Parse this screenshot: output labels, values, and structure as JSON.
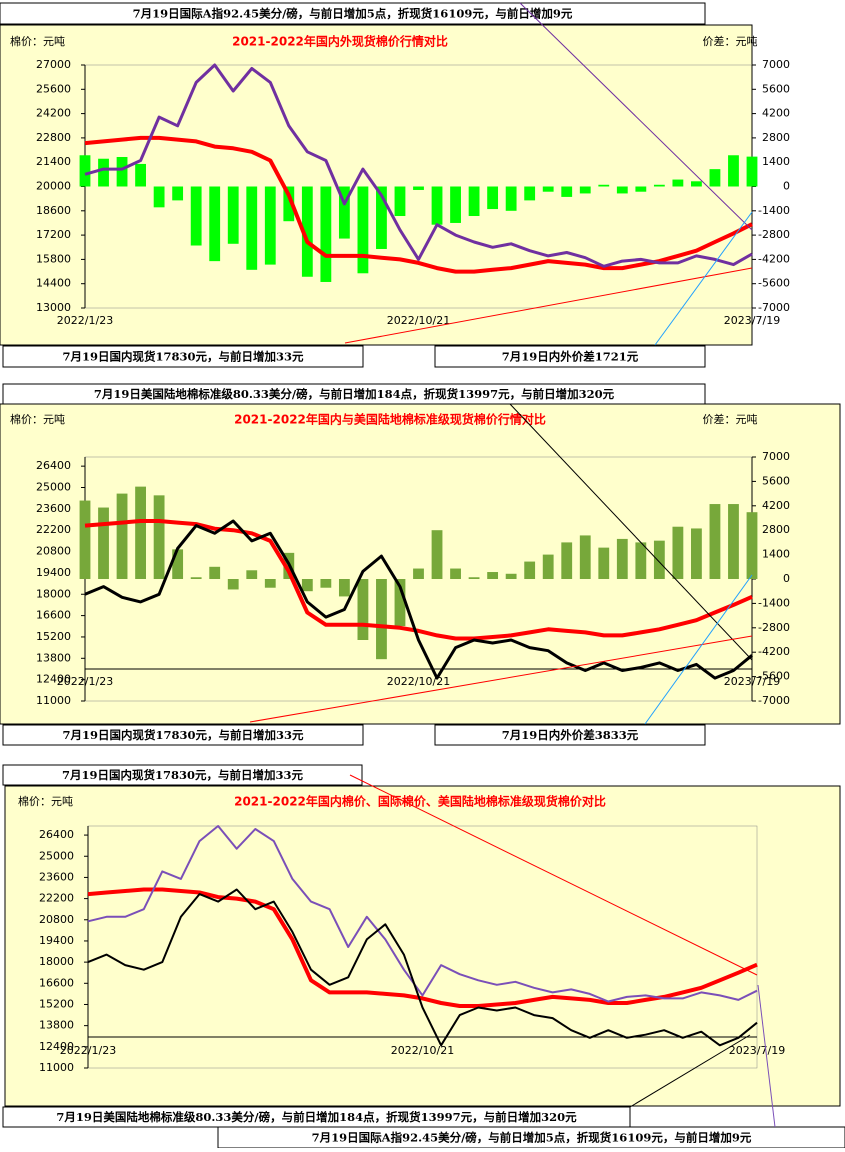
{
  "chart_data": [
    {
      "type": "bar-line",
      "title": "2021-2022年国内外现货棉价行情对比",
      "y_label": "棉价：元吨",
      "y2_label": "价差：元吨",
      "categories": [
        "2022/1/23",
        null,
        null,
        null,
        null,
        null,
        null,
        null,
        null,
        null,
        null,
        null,
        null,
        null,
        null,
        null,
        null,
        null,
        "2022/10/21",
        null,
        null,
        null,
        null,
        null,
        null,
        null,
        null,
        null,
        null,
        null,
        null,
        null,
        null,
        null,
        null,
        null,
        "2023/7/19"
      ],
      "ylim": [
        13000,
        27000
      ],
      "yticks": [
        13000,
        14400,
        15800,
        17200,
        18600,
        20000,
        21400,
        22800,
        24200,
        25600,
        27000
      ],
      "y2lim": [
        -7000,
        7000
      ],
      "y2ticks": [
        -7000,
        -5600,
        -4200,
        -2800,
        -1400,
        0,
        1400,
        2800,
        4200,
        5600,
        7000
      ],
      "series": [
        {
          "kind": "bar",
          "axis": "y2",
          "color": "#00ff00",
          "values": [
            1800,
            1600,
            1700,
            1300,
            -1200,
            -800,
            -3400,
            -4300,
            -3300,
            -4800,
            -4500,
            -2000,
            -5200,
            -5500,
            -3000,
            -5000,
            -3600,
            -1700,
            -200,
            -2200,
            -2100,
            -1700,
            -1300,
            -1400,
            -800,
            -300,
            -600,
            -400,
            100,
            -400,
            -300,
            100,
            400,
            300,
            1000,
            1800,
            1721
          ]
        },
        {
          "kind": "line",
          "color": "#ff0000",
          "values": [
            22500,
            22600,
            22700,
            22800,
            22800,
            22700,
            22600,
            22300,
            22200,
            22000,
            21500,
            19500,
            16800,
            16000,
            16000,
            16000,
            15900,
            15800,
            15600,
            15300,
            15100,
            15100,
            15200,
            15300,
            15500,
            15700,
            15600,
            15500,
            15300,
            15300,
            15500,
            15700,
            16000,
            16300,
            16800,
            17300,
            17830
          ]
        },
        {
          "kind": "line",
          "color": "#7030a0",
          "values": [
            20700,
            21000,
            21000,
            21500,
            24000,
            23500,
            26000,
            27000,
            25500,
            26800,
            26000,
            23500,
            22000,
            21500,
            19000,
            21000,
            19500,
            17500,
            15800,
            17800,
            17200,
            16800,
            16500,
            16700,
            16300,
            16000,
            16200,
            15900,
            15400,
            15700,
            15800,
            15600,
            15600,
            16000,
            15800,
            15500,
            16109
          ]
        }
      ],
      "callouts": [
        "7月19日国际A指92.45美分/磅，与前日增加5点，折现货16109元，与前日增加9元",
        "7月19日国内现货17830元，与前日增加33元",
        "7月19日内外价差1721元"
      ]
    },
    {
      "type": "bar-line",
      "title": "2021-2022年国内与美国陆地棉标准级现货棉价行情对比",
      "y_label": "棉价：元吨",
      "y2_label": "价差：元吨",
      "categories": [
        "2022/1/23",
        null,
        null,
        null,
        null,
        null,
        null,
        null,
        null,
        null,
        null,
        null,
        null,
        null,
        null,
        null,
        null,
        null,
        "2022/10/21",
        null,
        null,
        null,
        null,
        null,
        null,
        null,
        null,
        null,
        null,
        null,
        null,
        null,
        null,
        null,
        null,
        null,
        "2023/7/19"
      ],
      "ylim": [
        11000,
        27000
      ],
      "yticks": [
        11000,
        12400,
        13800,
        15200,
        16600,
        18000,
        19400,
        20800,
        22200,
        23600,
        25000,
        26400
      ],
      "y2lim": [
        -7000,
        7000
      ],
      "y2ticks": [
        -7000,
        -5600,
        -4200,
        -2800,
        -1400,
        0,
        1400,
        2800,
        4200,
        5600,
        7000
      ],
      "series": [
        {
          "kind": "bar",
          "axis": "y2",
          "color": "#77a83a",
          "values": [
            4500,
            4100,
            4900,
            5300,
            4800,
            1700,
            100,
            700,
            -600,
            500,
            -500,
            1500,
            -700,
            -500,
            -1000,
            -3500,
            -4600,
            -2700,
            600,
            2800,
            600,
            100,
            400,
            300,
            1000,
            1400,
            2100,
            2500,
            1800,
            2300,
            2100,
            2200,
            3000,
            2900,
            4300,
            4300,
            3833
          ]
        },
        {
          "kind": "line",
          "color": "#ff0000",
          "values": [
            22500,
            22600,
            22700,
            22800,
            22800,
            22700,
            22600,
            22300,
            22200,
            22000,
            21500,
            19500,
            16800,
            16000,
            16000,
            16000,
            15900,
            15800,
            15600,
            15300,
            15100,
            15100,
            15200,
            15300,
            15500,
            15700,
            15600,
            15500,
            15300,
            15300,
            15500,
            15700,
            16000,
            16300,
            16800,
            17300,
            17830
          ]
        },
        {
          "kind": "line",
          "color": "#000000",
          "values": [
            18000,
            18500,
            17800,
            17500,
            18000,
            21000,
            22500,
            22000,
            22800,
            21500,
            22000,
            20000,
            17500,
            16500,
            17000,
            19500,
            20500,
            18500,
            15000,
            12500,
            14500,
            15000,
            14800,
            15000,
            14500,
            14300,
            13500,
            13000,
            13500,
            13000,
            13200,
            13500,
            13000,
            13400,
            12500,
            13000,
            13997
          ]
        }
      ],
      "callouts": [
        "7月19日美国陆地棉标准级80.33美分/磅，与前日增加184点，折现货13997元，与前日增加320元",
        "7月19日国内现货17830元，与前日增加33元",
        "7月19日内外价差3833元"
      ]
    },
    {
      "type": "line",
      "title": "2021-2022年国内棉价、国际棉价、美国陆地棉标准级现货棉价对比",
      "y_label": "棉价：元吨",
      "categories": [
        "2022/1/23",
        null,
        null,
        null,
        null,
        null,
        null,
        null,
        null,
        null,
        null,
        null,
        null,
        null,
        null,
        null,
        null,
        null,
        "2022/10/21",
        null,
        null,
        null,
        null,
        null,
        null,
        null,
        null,
        null,
        null,
        null,
        null,
        null,
        null,
        null,
        null,
        null,
        "2023/7/19"
      ],
      "ylim": [
        11000,
        27000
      ],
      "yticks": [
        11000,
        12400,
        13800,
        15200,
        16600,
        18000,
        19400,
        20800,
        22200,
        23600,
        25000,
        26400
      ],
      "series": [
        {
          "kind": "line",
          "color": "#ff0000",
          "values": [
            22500,
            22600,
            22700,
            22800,
            22800,
            22700,
            22600,
            22300,
            22200,
            22000,
            21500,
            19500,
            16800,
            16000,
            16000,
            16000,
            15900,
            15800,
            15600,
            15300,
            15100,
            15100,
            15200,
            15300,
            15500,
            15700,
            15600,
            15500,
            15300,
            15300,
            15500,
            15700,
            16000,
            16300,
            16800,
            17300,
            17830
          ]
        },
        {
          "kind": "line",
          "color": "#7a4fb8",
          "values": [
            20700,
            21000,
            21000,
            21500,
            24000,
            23500,
            26000,
            27000,
            25500,
            26800,
            26000,
            23500,
            22000,
            21500,
            19000,
            21000,
            19500,
            17500,
            15800,
            17800,
            17200,
            16800,
            16500,
            16700,
            16300,
            16000,
            16200,
            15900,
            15400,
            15700,
            15800,
            15600,
            15600,
            16000,
            15800,
            15500,
            16109
          ]
        },
        {
          "kind": "line",
          "color": "#000000",
          "values": [
            18000,
            18500,
            17800,
            17500,
            18000,
            21000,
            22500,
            22000,
            22800,
            21500,
            22000,
            20000,
            17500,
            16500,
            17000,
            19500,
            20500,
            18500,
            15000,
            12500,
            14500,
            15000,
            14800,
            15000,
            14500,
            14300,
            13500,
            13000,
            13500,
            13000,
            13200,
            13500,
            13000,
            13400,
            12500,
            13000,
            13997
          ]
        }
      ],
      "callouts": [
        "7月19日国内现货17830元，与前日增加33元",
        "7月19日美国陆地棉标准级80.33美分/磅，与前日增加184点，折现货13997元，与前日增加320元",
        "7月19日国际A指92.45美分/磅，与前日增加5点，折现货16109元，与前日增加9元"
      ]
    }
  ]
}
